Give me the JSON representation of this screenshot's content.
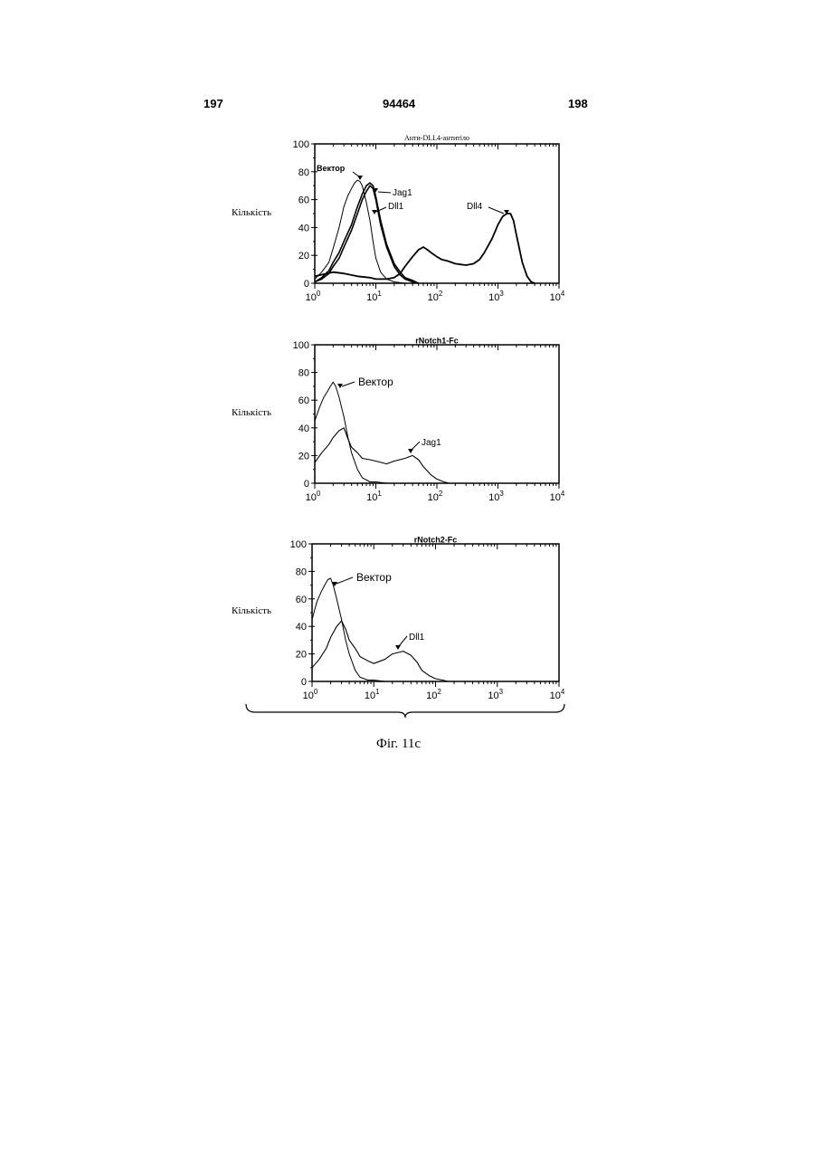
{
  "page": {
    "left_number": "197",
    "center_number": "94464",
    "right_number": "198",
    "caption": "Фіг. 11с"
  },
  "chart_data": [
    {
      "type": "line",
      "title": "Анти-DLL4-антитіло",
      "ylabel": "Кількість",
      "xscale": "log",
      "xlim": [
        1,
        10000
      ],
      "ylim": [
        0,
        100
      ],
      "yticks": [
        0,
        20,
        40,
        60,
        80,
        100
      ],
      "xticks": [
        "10^0",
        "10^1",
        "10^2",
        "10^3",
        "10^4"
      ],
      "series": [
        {
          "name": "Вектор",
          "x": [
            1,
            1.3,
            1.7,
            2,
            2.5,
            3,
            3.5,
            4,
            4.5,
            5,
            5.5,
            6,
            7,
            8,
            9,
            10,
            12,
            15,
            20,
            30
          ],
          "y": [
            3,
            8,
            15,
            25,
            40,
            55,
            63,
            68,
            72,
            74,
            73,
            70,
            58,
            45,
            30,
            18,
            8,
            3,
            1,
            0
          ]
        },
        {
          "name": "Jag1",
          "x": [
            1,
            1.3,
            1.7,
            2,
            2.5,
            3,
            4,
            5,
            6,
            7,
            8,
            9,
            10,
            12,
            15,
            20,
            25,
            30,
            40,
            50
          ],
          "y": [
            1,
            4,
            9,
            15,
            22,
            30,
            42,
            55,
            64,
            70,
            72,
            70,
            62,
            45,
            28,
            14,
            8,
            4,
            2,
            0
          ]
        },
        {
          "name": "Dll1",
          "x": [
            1,
            1.3,
            1.7,
            2,
            2.5,
            3,
            4,
            5,
            6,
            7,
            8,
            9,
            10,
            12,
            15,
            20,
            25,
            30,
            40,
            50
          ],
          "y": [
            1,
            3,
            7,
            12,
            18,
            26,
            38,
            50,
            60,
            66,
            70,
            68,
            60,
            42,
            26,
            12,
            6,
            3,
            1,
            0
          ]
        },
        {
          "name": "Dll4",
          "x": [
            1,
            2,
            3,
            5,
            8,
            10,
            15,
            20,
            25,
            30,
            40,
            50,
            60,
            70,
            80,
            100,
            120,
            150,
            200,
            300,
            400,
            500,
            600,
            800,
            1000,
            1200,
            1400,
            1600,
            1800,
            2000,
            2500,
            3000,
            3500,
            4000
          ],
          "y": [
            5,
            8,
            7,
            5,
            4,
            3,
            3,
            4,
            7,
            12,
            19,
            24,
            26,
            24,
            22,
            19,
            17,
            16,
            14,
            13,
            14,
            17,
            22,
            32,
            42,
            48,
            50,
            50,
            45,
            35,
            15,
            5,
            1,
            0
          ]
        }
      ]
    },
    {
      "type": "line",
      "title": "rNotch1-Fc",
      "ylabel": "Кількість",
      "xscale": "log",
      "xlim": [
        1,
        10000
      ],
      "ylim": [
        0,
        100
      ],
      "yticks": [
        0,
        20,
        40,
        60,
        80,
        100
      ],
      "xticks": [
        "10^0",
        "10^1",
        "10^2",
        "10^3",
        "10^4"
      ],
      "series": [
        {
          "name": "Вектор",
          "x": [
            1,
            1.2,
            1.4,
            1.6,
            1.8,
            2,
            2.2,
            2.5,
            3,
            3.5,
            4,
            5,
            6,
            8,
            10,
            15,
            20
          ],
          "y": [
            45,
            55,
            62,
            66,
            70,
            73,
            70,
            62,
            48,
            33,
            22,
            10,
            4,
            1,
            1,
            0,
            0
          ]
        },
        {
          "name": "Jag1",
          "x": [
            1,
            1.3,
            1.7,
            2,
            2.5,
            3,
            3.5,
            4,
            5,
            6,
            8,
            10,
            15,
            20,
            30,
            40,
            50,
            60,
            80,
            100,
            130,
            160
          ],
          "y": [
            15,
            22,
            28,
            33,
            38,
            40,
            32,
            26,
            22,
            18,
            17,
            16,
            14,
            16,
            18,
            20,
            17,
            12,
            6,
            3,
            1,
            0
          ]
        }
      ]
    },
    {
      "type": "line",
      "title": "rNotch2-Fc",
      "ylabel": "Кількість",
      "xscale": "log",
      "xlim": [
        1,
        10000
      ],
      "ylim": [
        0,
        100
      ],
      "yticks": [
        0,
        20,
        40,
        60,
        80,
        100
      ],
      "xticks": [
        "10^0",
        "10^1",
        "10^2",
        "10^3",
        "10^4"
      ],
      "series": [
        {
          "name": "Вектор",
          "x": [
            1,
            1.2,
            1.4,
            1.6,
            1.8,
            2,
            2.2,
            2.5,
            3,
            3.5,
            4,
            5,
            6,
            8,
            10,
            15,
            20
          ],
          "y": [
            45,
            58,
            65,
            70,
            74,
            75,
            70,
            60,
            45,
            30,
            20,
            8,
            3,
            1,
            1,
            0,
            0
          ]
        },
        {
          "name": "Dll1",
          "x": [
            1,
            1.3,
            1.7,
            2,
            2.5,
            3,
            3.5,
            4,
            5,
            6,
            8,
            10,
            15,
            20,
            30,
            40,
            50,
            60,
            80,
            100,
            130,
            160
          ],
          "y": [
            10,
            16,
            24,
            32,
            40,
            44,
            38,
            30,
            24,
            18,
            15,
            13,
            16,
            20,
            22,
            19,
            14,
            8,
            4,
            2,
            1,
            0
          ]
        }
      ]
    }
  ]
}
